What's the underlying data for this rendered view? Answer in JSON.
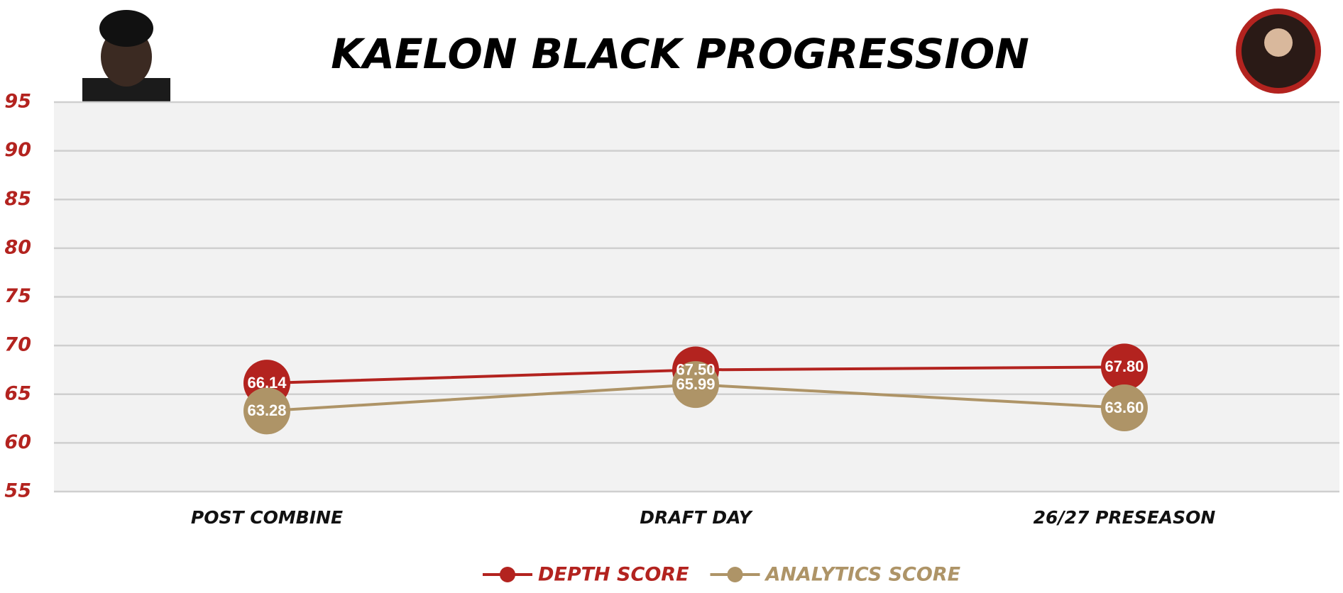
{
  "chart_data": {
    "type": "line",
    "title": "KAELON BLACK PROGRESSION",
    "categories": [
      "POST COMBINE",
      "DRAFT DAY",
      "26/27 PRESEASON"
    ],
    "series": [
      {
        "name": "DEPTH SCORE",
        "color": "#b3231f",
        "values": [
          66.14,
          67.5,
          67.8
        ],
        "value_labels": [
          "66.14",
          "67.50",
          "67.80"
        ]
      },
      {
        "name": "ANALYTICS SCORE",
        "color": "#ae9467",
        "values": [
          63.28,
          65.99,
          63.6
        ],
        "value_labels": [
          "63.28",
          "65.99",
          "63.60"
        ]
      }
    ],
    "ylim": [
      55,
      95
    ],
    "yticks": [
      55,
      60,
      65,
      70,
      75,
      80,
      85,
      90,
      95
    ],
    "grid": true,
    "legend": "bottom"
  }
}
